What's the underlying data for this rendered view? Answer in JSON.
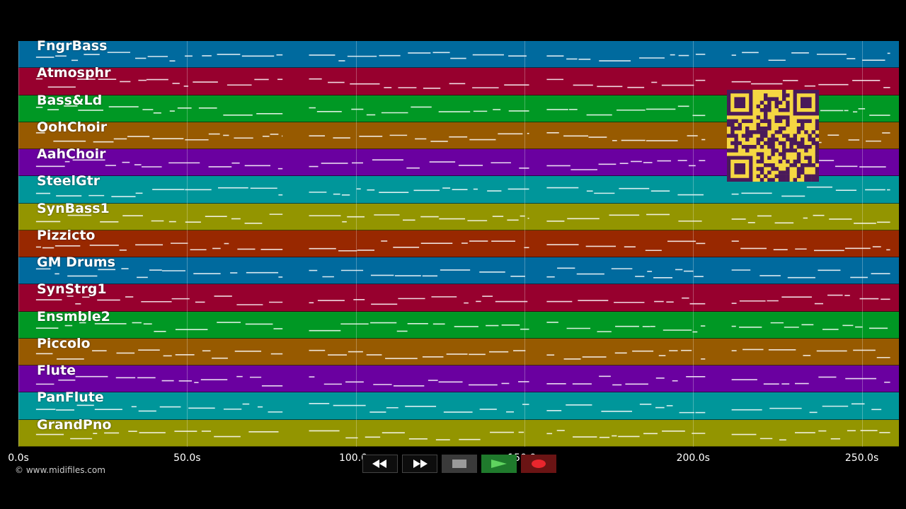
{
  "tracks": [
    {
      "name": "FngrBass",
      "color": "#006a9e"
    },
    {
      "name": "Atmosphr",
      "color": "#97002e"
    },
    {
      "name": "Bass&Ld",
      "color": "#009824"
    },
    {
      "name": "OohChoir",
      "color": "#975a00"
    },
    {
      "name": "AahChoir",
      "color": "#6a00a0"
    },
    {
      "name": "SteelGtr",
      "color": "#00969a"
    },
    {
      "name": "SynBass1",
      "color": "#939500"
    },
    {
      "name": "Pizzicto",
      "color": "#982800"
    },
    {
      "name": "GM Drums",
      "color": "#006a9e"
    },
    {
      "name": "SynStrg1",
      "color": "#97002e"
    },
    {
      "name": "Ensmble2",
      "color": "#009824"
    },
    {
      "name": "Piccolo",
      "color": "#975a00"
    },
    {
      "name": "Flute",
      "color": "#6a00a0"
    },
    {
      "name": "PanFlute",
      "color": "#00969a"
    },
    {
      "name": "GrandPno",
      "color": "#939500"
    }
  ],
  "timeline": {
    "ticks": [
      {
        "label": "0.0s",
        "seconds": 0
      },
      {
        "label": "50.0s",
        "seconds": 50
      },
      {
        "label": "100.0s",
        "seconds": 100
      },
      {
        "label": "150.0s",
        "seconds": 150
      },
      {
        "label": "200.0s",
        "seconds": 200
      },
      {
        "label": "250.0s",
        "seconds": 250
      }
    ],
    "duration_seconds": 261
  },
  "copyright": "© www.midifiles.com",
  "transport": {
    "rewind_icon": "double-left-arrow",
    "forward_icon": "double-right-arrow",
    "stop_icon": "square",
    "play_icon": "triangle-right",
    "record_icon": "circle",
    "play_color": "#5fd35f",
    "record_color": "#e8262d"
  },
  "qr_code": {
    "color": "#f5d742",
    "dark": "#4a1a5a"
  }
}
